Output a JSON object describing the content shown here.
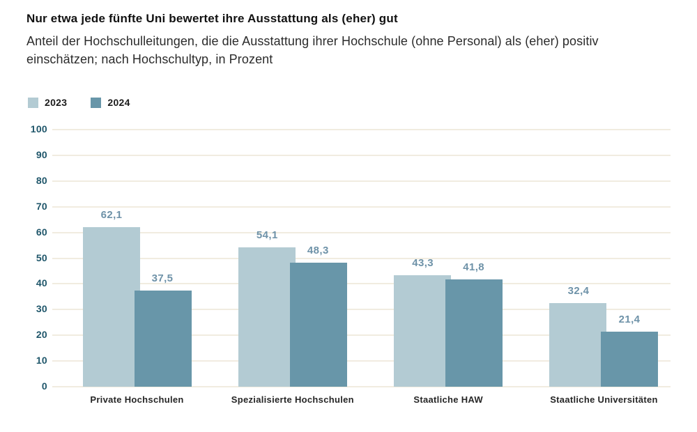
{
  "header": {
    "title": "Nur etwa jede fünfte Uni bewertet ihre Ausstattung als (eher) gut",
    "subtitle": "Anteil der Hochschulleitungen, die die Ausstattung ihrer Hochschule (ohne Personal) als (eher) positiv einschätzen; nach Hochschultyp, in Prozent"
  },
  "legend": {
    "items": [
      {
        "label": "2023",
        "color": "#b3cbd3"
      },
      {
        "label": "2024",
        "color": "#6896a9"
      }
    ]
  },
  "colors": {
    "series_2023": "#b3cbd3",
    "series_2024": "#6896a9",
    "value_label": "#6e92a8",
    "y_axis_label": "#1f566a",
    "gridline": "#f1ece0",
    "title_text": "#111111",
    "subtitle_text": "#2b2b2b",
    "category_label": "#262626"
  },
  "chart_data": {
    "type": "bar",
    "title": "Nur etwa jede fünfte Uni bewertet ihre Ausstattung als (eher) gut",
    "subtitle": "Anteil der Hochschulleitungen, die die Ausstattung ihrer Hochschule (ohne Personal) als (eher) positiv einschätzen; nach Hochschultyp, in Prozent",
    "categories": [
      "Private Hochschulen",
      "Spezialisierte Hochschulen",
      "Staatliche HAW",
      "Staatliche Universitäten"
    ],
    "series": [
      {
        "name": "2023",
        "color": "#b3cbd3",
        "values": [
          62.1,
          54.1,
          43.3,
          32.4
        ],
        "value_labels": [
          "62,1",
          "54,1",
          "43,3",
          "32,4"
        ]
      },
      {
        "name": "2024",
        "color": "#6896a9",
        "values": [
          37.5,
          48.3,
          41.8,
          21.4
        ],
        "value_labels": [
          "37,5",
          "48,3",
          "41,8",
          "21,4"
        ]
      }
    ],
    "xlabel": "",
    "ylabel": "",
    "ylim": [
      0,
      100
    ],
    "yticks": [
      0,
      10,
      20,
      30,
      40,
      50,
      60,
      70,
      80,
      90,
      100
    ],
    "grid": true,
    "bar_style": "overlapping-pairs",
    "legend_position": "top-left",
    "value_decimal_separator": ","
  }
}
